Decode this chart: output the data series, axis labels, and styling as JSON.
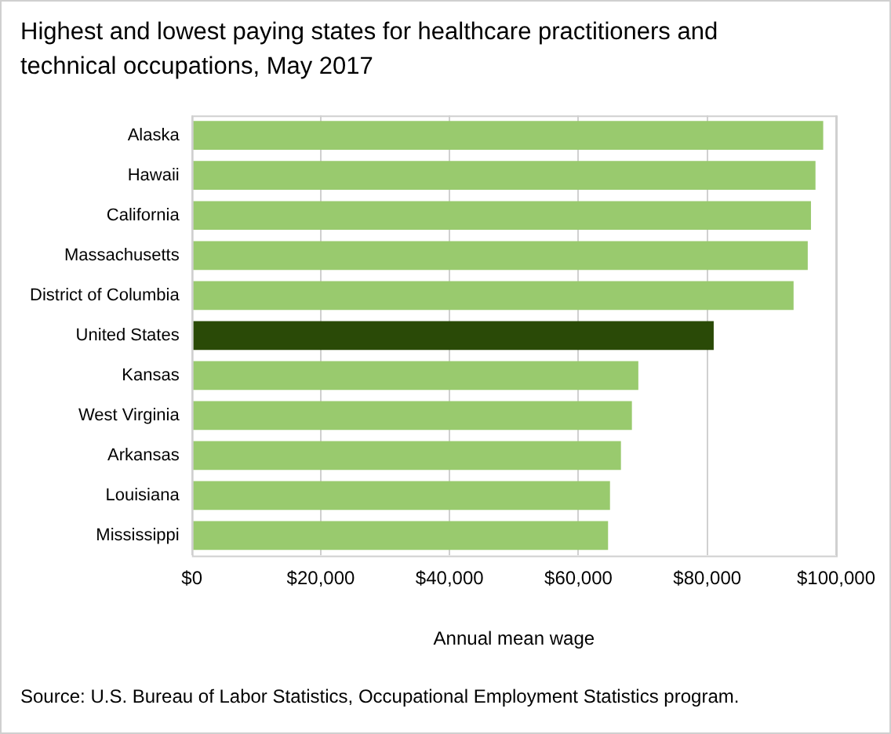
{
  "chart_data": {
    "type": "bar",
    "orientation": "horizontal",
    "title": "Highest and lowest paying states for healthcare practitioners and technical occupations, May 2017",
    "xlabel": "Annual mean wage",
    "categories": [
      "Alaska",
      "Hawaii",
      "California",
      "Massachusetts",
      "District of Columbia",
      "United States",
      "Kansas",
      "West Virginia",
      "Arkansas",
      "Louisiana",
      "Mississippi"
    ],
    "values": [
      98000,
      96800,
      96100,
      95600,
      93400,
      81000,
      69300,
      68300,
      66600,
      64900,
      64600
    ],
    "colors": [
      "#99ca6e",
      "#99ca6e",
      "#99ca6e",
      "#99ca6e",
      "#99ca6e",
      "#2a4a07",
      "#99ca6e",
      "#99ca6e",
      "#99ca6e",
      "#99ca6e",
      "#99ca6e"
    ],
    "xlim": [
      0,
      100000
    ],
    "xticks": [
      {
        "value": 0,
        "label": "$0"
      },
      {
        "value": 20000,
        "label": "$20,000"
      },
      {
        "value": 40000,
        "label": "$40,000"
      },
      {
        "value": 60000,
        "label": "$60,000"
      },
      {
        "value": 80000,
        "label": "$80,000"
      },
      {
        "value": 100000,
        "label": "$100,000"
      }
    ],
    "grid": "x",
    "legend": false,
    "annotations": [
      "Source: U.S. Bureau of Labor Statistics, Occupational Employment Statistics program."
    ]
  }
}
